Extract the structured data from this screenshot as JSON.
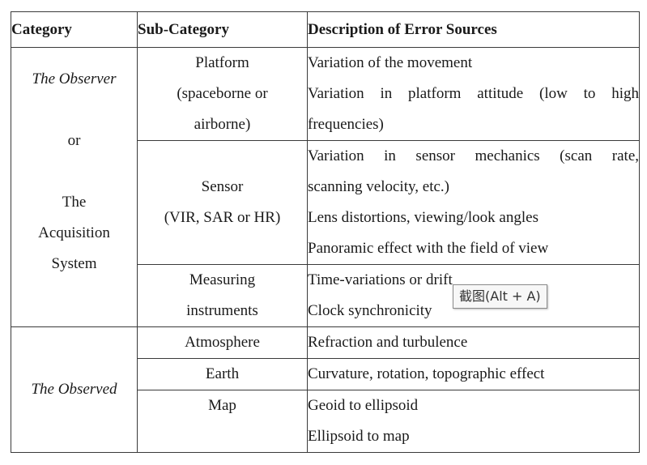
{
  "table": {
    "headers": [
      "Category",
      "Sub-Category",
      "Description of Error Sources"
    ],
    "observer_lines": [
      "The Observer",
      "or",
      "The",
      "Acquisition",
      "System"
    ],
    "observed_label": "The Observed",
    "rows": {
      "platform": {
        "sub_lines": [
          "Platform",
          "(spaceborne or",
          "airborne)"
        ],
        "desc_lines": [
          "Variation of the movement",
          "Variation in platform attitude (low to high",
          "frequencies)"
        ]
      },
      "sensor": {
        "sub_lines": [
          "Sensor",
          "(VIR, SAR or HR)"
        ],
        "desc_lines": [
          "Variation in sensor mechanics (scan rate,",
          "scanning velocity, etc.)",
          "Lens distortions, viewing/look angles",
          "Panoramic effect with the field of view"
        ]
      },
      "measuring": {
        "sub_lines": [
          "Measuring",
          "instruments"
        ],
        "desc_lines": [
          "Time-variations or drift",
          "Clock synchronicity"
        ]
      },
      "atmosphere": {
        "sub": "Atmosphere",
        "desc": "Refraction and turbulence"
      },
      "earth": {
        "sub": "Earth",
        "desc": "Curvature, rotation, topographic effect"
      },
      "map": {
        "sub": "Map",
        "desc_lines": [
          "Geoid to ellipsoid",
          "Ellipsoid to map"
        ]
      }
    }
  },
  "tooltip": {
    "text": "截图(Alt + A)"
  }
}
